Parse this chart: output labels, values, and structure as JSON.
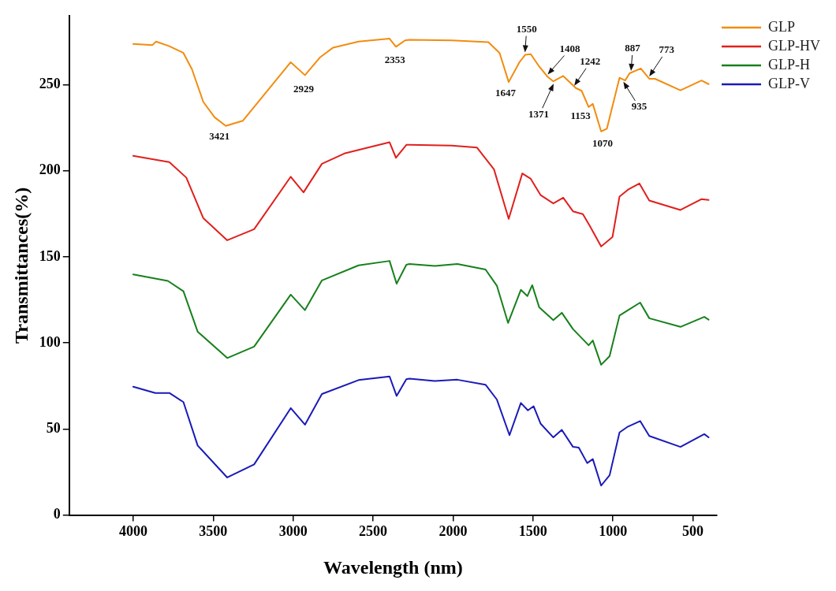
{
  "chart_data": {
    "type": "line",
    "xlabel": "Wavelength (nm)",
    "ylabel": "Transmittances(%)",
    "xlim": [
      4400,
      350
    ],
    "xticks": [
      4000,
      3500,
      3000,
      2500,
      2000,
      1500,
      1000,
      500
    ],
    "ylim": [
      0,
      290
    ],
    "yticks": [
      0,
      50,
      100,
      150,
      200,
      250
    ],
    "grid": false,
    "legend": "top right",
    "marker": "none",
    "line_style": "solid",
    "series": [
      {
        "name": "GLP",
        "color": "#f28c0f",
        "x": [
          4000,
          3880,
          3857,
          3774,
          3686,
          3633,
          3562,
          3491,
          3421,
          3315,
          3174,
          3015,
          2926,
          2830,
          2750,
          2591,
          2397,
          2357,
          2300,
          2273,
          2008,
          1779,
          1709,
          1652,
          1585,
          1549,
          1514,
          1461,
          1408,
          1373,
          1311,
          1232,
          1196,
          1152,
          1126,
          1074,
          1038,
          959,
          924,
          896,
          826,
          773,
          737,
          578,
          446,
          402
        ],
        "values": [
          273.6,
          273,
          275,
          272.3,
          268.4,
          259,
          240,
          231,
          226,
          229,
          245,
          263,
          255.5,
          266,
          271.5,
          275,
          276.7,
          272,
          275.7,
          276,
          275.7,
          274.7,
          268.4,
          251.5,
          263,
          267.3,
          267.7,
          260.5,
          254.5,
          251.9,
          255,
          248,
          246.4,
          237,
          238.8,
          222.8,
          224.4,
          254,
          252.4,
          256.6,
          259.4,
          253.4,
          253.4,
          246.7,
          252.4,
          250.3
        ]
      },
      {
        "name": "GLP-HV",
        "color": "#e0201c",
        "x": [
          4000,
          3774,
          3668,
          3562,
          3412,
          3244,
          3015,
          2935,
          2820,
          2680,
          2397,
          2357,
          2292,
          2273,
          2008,
          1850,
          1744,
          1652,
          1567,
          1514,
          1452,
          1373,
          1311,
          1250,
          1188,
          1144,
          1074,
          1003,
          959,
          906,
          835,
          773,
          578,
          446,
          402
        ],
        "values": [
          208.6,
          205,
          196,
          172.5,
          159.6,
          166,
          196.5,
          187.4,
          204,
          210,
          216.5,
          207.5,
          215,
          215,
          214.6,
          213.4,
          200.8,
          172,
          198.4,
          195.3,
          185.8,
          181,
          184.3,
          176.4,
          174.8,
          167.8,
          156,
          161.5,
          185,
          189,
          192.6,
          182.7,
          177.2,
          183.5,
          183
        ]
      },
      {
        "name": "GLP-H",
        "color": "#17801c",
        "x": [
          4000,
          3783,
          3686,
          3597,
          3412,
          3244,
          3015,
          2926,
          2820,
          2591,
          2397,
          2353,
          2292,
          2273,
          2114,
          1973,
          1797,
          1726,
          1656,
          1576,
          1535,
          1505,
          1461,
          1373,
          1320,
          1250,
          1152,
          1126,
          1074,
          1021,
          959,
          906,
          830,
          773,
          578,
          429,
          402
        ],
        "values": [
          139.8,
          136,
          130,
          106.5,
          91.2,
          97.8,
          128,
          119,
          136.3,
          145,
          147.6,
          134.4,
          145.4,
          145.8,
          144.7,
          145.8,
          142.6,
          133.2,
          111.6,
          130.8,
          127.2,
          133.5,
          120.6,
          113.2,
          117.5,
          108,
          98.6,
          101.4,
          87.3,
          92.3,
          115.9,
          119,
          123.4,
          114.3,
          109.3,
          115.1,
          113.5
        ]
      },
      {
        "name": "GLP-V",
        "color": "#1a1ab8",
        "x": [
          4000,
          3862,
          3774,
          3686,
          3597,
          3412,
          3244,
          3015,
          2926,
          2820,
          2591,
          2397,
          2353,
          2292,
          2273,
          2114,
          1973,
          1797,
          1726,
          1647,
          1576,
          1532,
          1496,
          1452,
          1373,
          1320,
          1250,
          1214,
          1161,
          1126,
          1074,
          1021,
          959,
          906,
          830,
          773,
          578,
          429,
          402
        ],
        "values": [
          74.5,
          70.9,
          70.9,
          65.6,
          40.4,
          21.8,
          29.4,
          62.1,
          52.5,
          70.3,
          78.4,
          80.5,
          69.2,
          78.9,
          79.2,
          77.8,
          78.6,
          75.7,
          67.1,
          46.4,
          65.1,
          60.8,
          63.2,
          53,
          45.1,
          49.5,
          39.6,
          39.2,
          30.2,
          32.5,
          17.1,
          23.1,
          48,
          51.4,
          54.6,
          45.9,
          39.6,
          47,
          45.1
        ]
      }
    ],
    "annotations": [
      {
        "text": "3421",
        "x": 3421,
        "y": 226
      },
      {
        "text": "2929",
        "x": 2929,
        "y": 255.5
      },
      {
        "text": "2353",
        "x": 2353,
        "y": 272
      },
      {
        "text": "1647",
        "x": 1647,
        "y": 251.5
      },
      {
        "text": "1550",
        "x": 1550,
        "y": 267.3
      },
      {
        "text": "1408",
        "x": 1408,
        "y": 254.5
      },
      {
        "text": "1371",
        "x": 1371,
        "y": 251.9
      },
      {
        "text": "1242",
        "x": 1242,
        "y": 248
      },
      {
        "text": "1153",
        "x": 1153,
        "y": 237
      },
      {
        "text": "1070",
        "x": 1070,
        "y": 222.8
      },
      {
        "text": "935",
        "x": 935,
        "y": 253
      },
      {
        "text": "887",
        "x": 887,
        "y": 256.6
      },
      {
        "text": "773",
        "x": 773,
        "y": 253.4
      }
    ]
  }
}
